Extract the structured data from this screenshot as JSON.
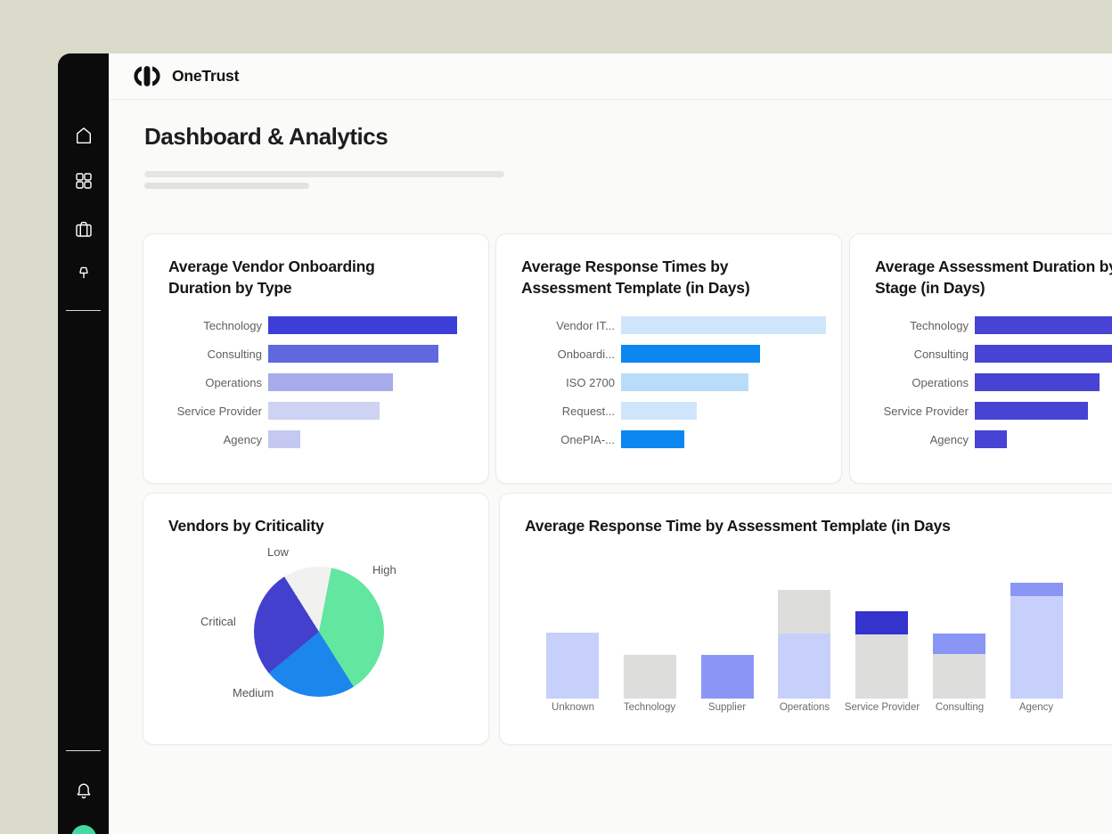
{
  "header": {
    "brand": "OneTrust"
  },
  "page": {
    "title": "Dashboard & Analytics"
  },
  "sidebar": {
    "nav_icons": [
      "home",
      "apps-grid",
      "briefcase",
      "pushpin"
    ],
    "footer_icons": [
      "bell",
      "gear"
    ],
    "avatar_color": "#43d9a0"
  },
  "colors": {
    "desktop_background": "#dadbca",
    "sidebar_background": "#0b0b0b",
    "content_background": "#fafaf9",
    "card_background": "#ffffff",
    "accent_indigo": "#3b3fd8",
    "accent_azure": "#0d87f0",
    "accent_green": "#62e6a0"
  },
  "chart_data": [
    {
      "id": "avg-vendor-onboarding-duration",
      "type": "bar",
      "orientation": "horizontal",
      "title": "Average Vendor Onboarding Duration by Type",
      "categories": [
        "Technology",
        "Consulting",
        "Operations",
        "Service Provider",
        "Agency"
      ],
      "values": [
        100,
        90,
        66,
        59,
        17
      ],
      "bar_colors": [
        "#3b3fd8",
        "#5f68df",
        "#a7abe9",
        "#ced2f3",
        "#c5c9f2"
      ],
      "value_note": "relative length, no axis labels shown",
      "grid": false,
      "legend": false
    },
    {
      "id": "avg-response-times-by-template",
      "type": "bar",
      "orientation": "horizontal",
      "title": "Average Response Times by Assessment Template (in Days)",
      "categories": [
        "Vendor IT...",
        "Onboardi...",
        "ISO 2700",
        "Request...",
        "OnePIA-..."
      ],
      "values": [
        100,
        68,
        62,
        37,
        31
      ],
      "bar_colors": [
        "#cfe5fb",
        "#0d87f0",
        "#b9dcfa",
        "#cfe5fb",
        "#0d87f0"
      ],
      "value_note": "relative length, no axis labels shown",
      "grid": false,
      "legend": false
    },
    {
      "id": "avg-assessment-duration-by-stage",
      "type": "bar",
      "orientation": "horizontal",
      "title": "Average Assessment Duration by Stage (in Days)",
      "categories": [
        "Technology",
        "Consulting",
        "Operations",
        "Service Provider",
        "Agency"
      ],
      "values": [
        100,
        90,
        66,
        60,
        17
      ],
      "bar_colors": [
        "#4643d5",
        "#4643d5",
        "#4643d5",
        "#4643d5",
        "#4643d5"
      ],
      "value_note": "card clipped by right edge of viewport; longest bars cut off",
      "grid": false,
      "legend": false
    },
    {
      "id": "vendors-by-criticality",
      "type": "pie",
      "title": "Vendors by Criticality",
      "labels": [
        "High",
        "Medium",
        "Critical",
        "Low"
      ],
      "values": [
        38,
        23,
        27,
        12
      ],
      "colors": [
        "#62e6a0",
        "#1b86ec",
        "#4340cd",
        "#f1f1f0"
      ],
      "start_angle_deg": 11,
      "value_note": "percent of pie, estimated from slice angles",
      "legend": false
    },
    {
      "id": "avg-response-time-by-template-stacked",
      "type": "bar",
      "orientation": "vertical",
      "stacked": true,
      "title": "Average Response Time by Assessment Template (in Days",
      "categories": [
        "Unknown",
        "Technology",
        "Supplier",
        "Operations",
        "Service Provider",
        "Consulting",
        "Agency"
      ],
      "palette": {
        "periwinkle_light": "#c6d0fb",
        "gray": "#dddddc",
        "periwinkle": "#8a96f6",
        "indigo": "#3533cd"
      },
      "stacks": [
        [
          {
            "color": "periwinkle_light",
            "value": 74
          }
        ],
        [
          {
            "color": "gray",
            "value": 49
          }
        ],
        [
          {
            "color": "periwinkle",
            "value": 49
          }
        ],
        [
          {
            "color": "periwinkle_light",
            "value": 73
          },
          {
            "color": "gray",
            "value": 49
          }
        ],
        [
          {
            "color": "gray",
            "value": 72
          },
          {
            "color": "indigo",
            "value": 26
          }
        ],
        [
          {
            "color": "gray",
            "value": 50
          },
          {
            "color": "periwinkle",
            "value": 23
          }
        ],
        [
          {
            "color": "periwinkle_light",
            "value": 115
          },
          {
            "color": "periwinkle",
            "value": 15
          }
        ]
      ],
      "value_note": "relative heights, segments listed bottom to top; no axis labels shown",
      "grid": false,
      "legend": false
    }
  ]
}
